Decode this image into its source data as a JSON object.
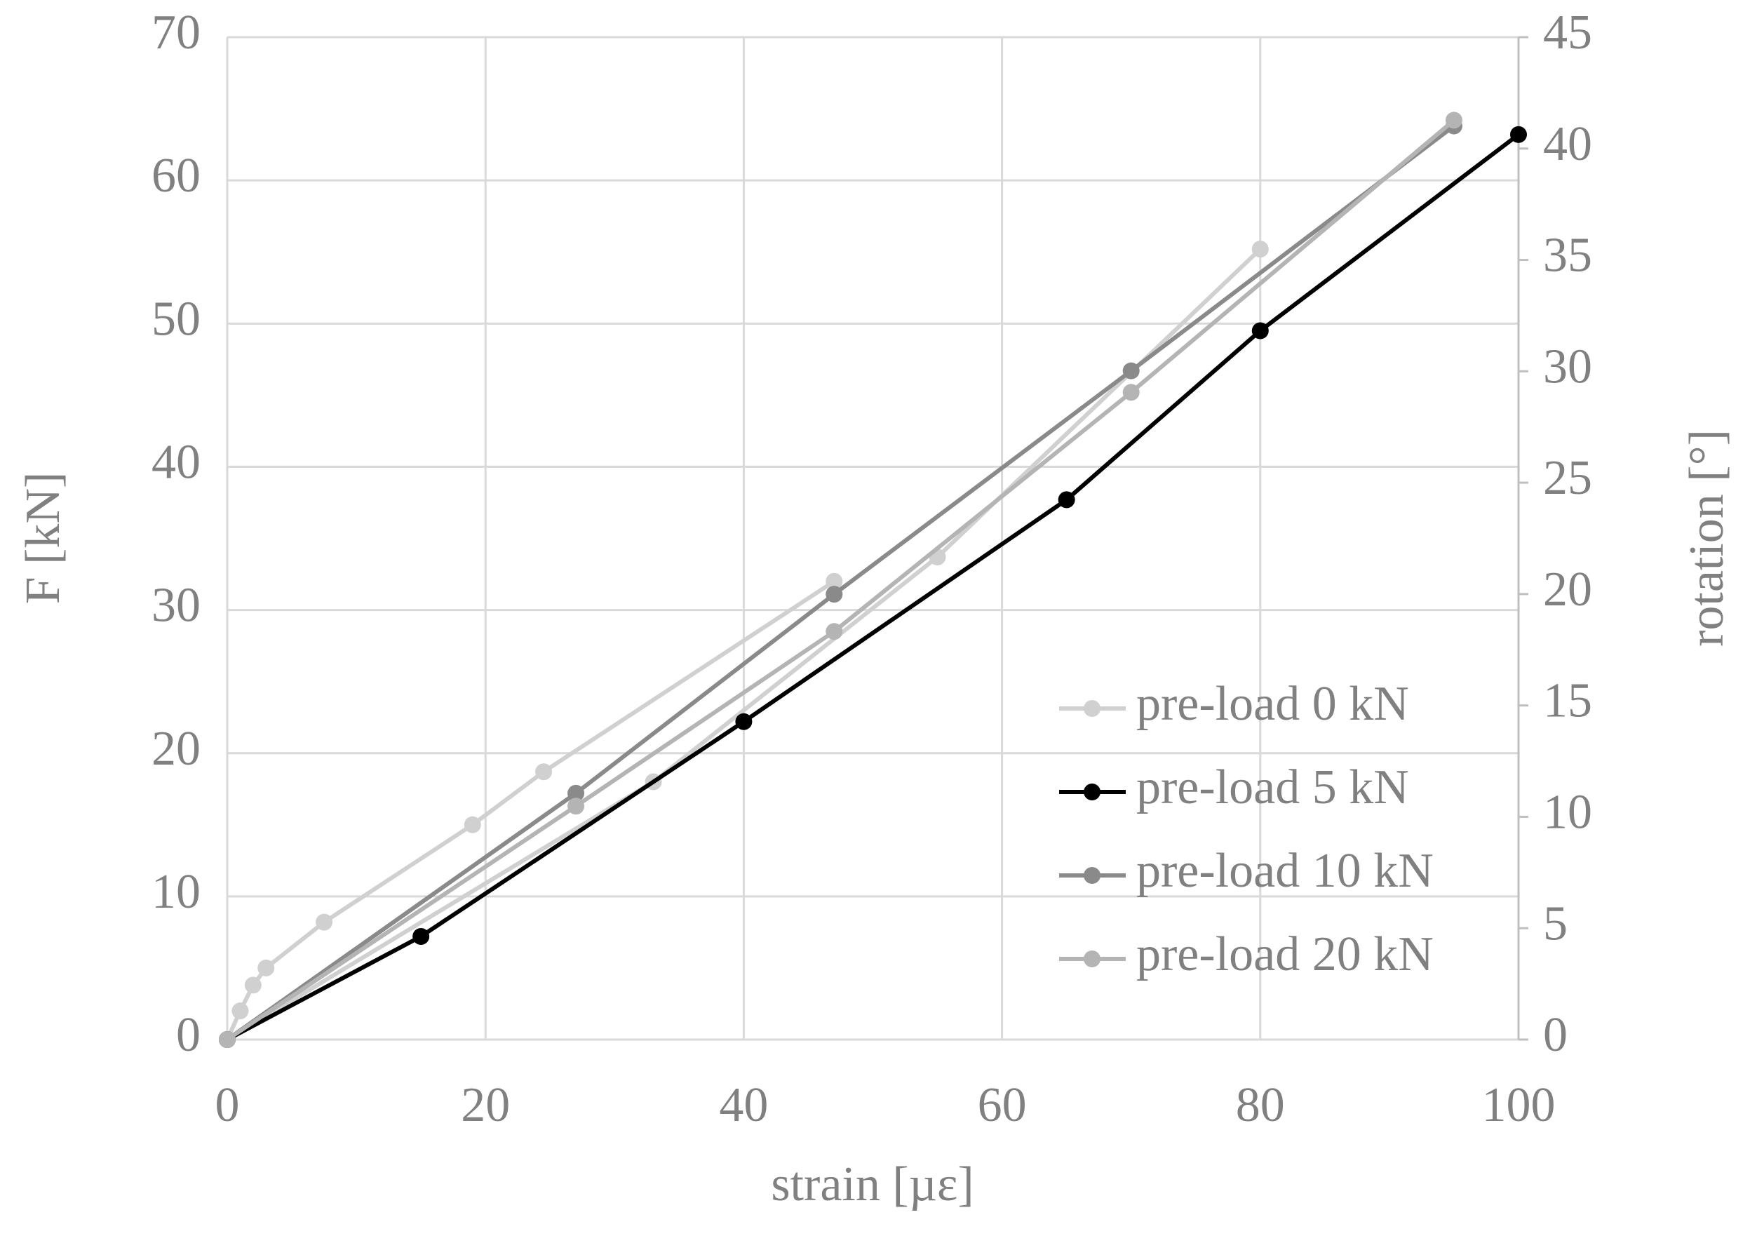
{
  "chart_data": {
    "type": "line",
    "xlabel": "strain [µε]",
    "ylabel": "F [kN]",
    "y2label": "rotation [°]",
    "xlim": [
      0,
      100
    ],
    "xticks": [
      0,
      20,
      40,
      60,
      80,
      100
    ],
    "ylim": [
      0,
      70
    ],
    "yticks": [
      0,
      10,
      20,
      30,
      40,
      50,
      60,
      70
    ],
    "y2lim": [
      0,
      45
    ],
    "y2ticks": [
      0,
      5,
      10,
      15,
      20,
      25,
      30,
      35,
      40,
      45
    ],
    "grid": true,
    "legend": "lower right",
    "series": [
      {
        "name": "pre-load 0 kN",
        "color": "#d0d0d0",
        "x": [
          0,
          1,
          2,
          3,
          7.5,
          19,
          24.5,
          47,
          null,
          0,
          33,
          55,
          80
        ],
        "values": [
          0,
          2,
          3.8,
          5,
          8.2,
          15,
          18.7,
          32,
          null,
          0,
          18,
          33.7,
          55.2
        ]
      },
      {
        "name": "pre-load 5 kN",
        "color": "#000000",
        "x": [
          0,
          15,
          40,
          65,
          80,
          100
        ],
        "values": [
          0,
          7.2,
          22.2,
          37.7,
          49.5,
          63.2
        ]
      },
      {
        "name": "pre-load 10 kN",
        "color": "#8a8a8a",
        "x": [
          0,
          27,
          47,
          70,
          95
        ],
        "values": [
          0,
          17.2,
          31.1,
          46.7,
          63.8
        ]
      },
      {
        "name": "pre-load 20 kN",
        "color": "#b4b4b4",
        "x": [
          0,
          27,
          47,
          70,
          95
        ],
        "values": [
          0,
          16.3,
          28.5,
          45.2,
          64.2
        ]
      }
    ]
  }
}
